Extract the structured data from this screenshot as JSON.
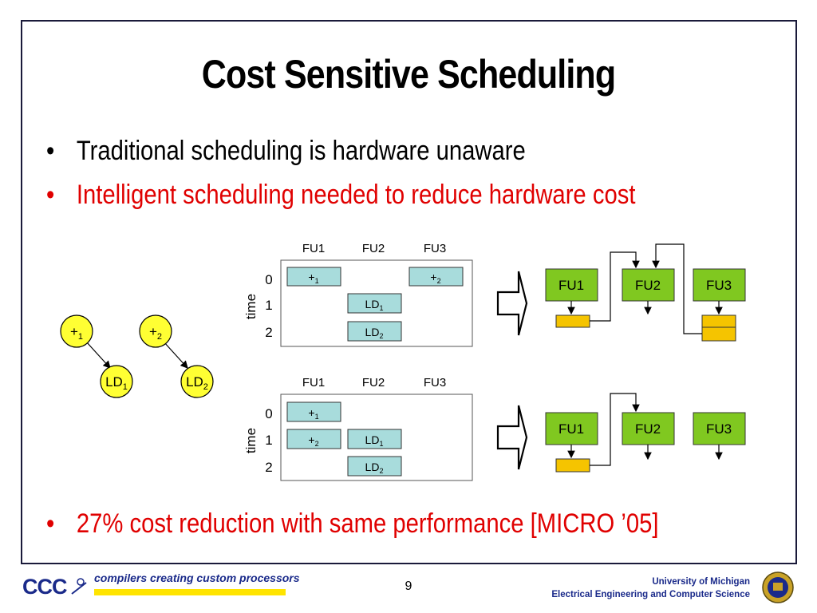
{
  "slide": {
    "title": "Cost Sensitive Scheduling",
    "bullets": [
      "Traditional scheduling is hardware unaware",
      "Intelligent scheduling needed to reduce hardware cost",
      "27% cost reduction with same performance [MICRO ’05]"
    ],
    "bullet_symbol": "•"
  },
  "dfg": {
    "nodes": [
      "+",
      "+",
      "LD",
      "LD"
    ],
    "subscripts": [
      "1",
      "2",
      "1",
      "2"
    ]
  },
  "schedules": {
    "fu_headers": [
      "FU1",
      "FU2",
      "FU3"
    ],
    "time_label": "time",
    "time_rows": [
      "0",
      "1",
      "2"
    ],
    "top_ops": [
      "+",
      "1",
      "+",
      "2",
      "LD",
      "1",
      "LD",
      "2"
    ],
    "bottom_ops": [
      "+",
      "1",
      "+",
      "2",
      "LD",
      "1",
      "LD",
      "2"
    ]
  },
  "hardware": {
    "units": [
      "FU1",
      "FU2",
      "FU3"
    ]
  },
  "footer": {
    "logo_text": "CCC",
    "tagline": "compilers creating custom processors",
    "page_number": "9",
    "university": "University of Michigan",
    "department": "Electrical Engineering and Computer Science"
  },
  "colors": {
    "red_text": "#e00000",
    "node_fill": "#ffff33",
    "op_fill": "#a8dcdc",
    "fu_fill": "#80c820",
    "register_fill": "#f5c400",
    "navy": "#1a2a8a"
  }
}
